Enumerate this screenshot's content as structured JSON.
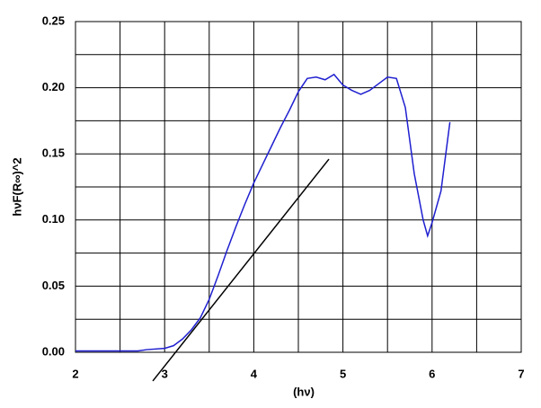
{
  "chart_data": {
    "type": "line",
    "xlabel": "(hν)",
    "ylabel": "hνF(R∞)^2",
    "xlim": [
      2,
      7
    ],
    "xticks": [
      2,
      3,
      4,
      5,
      6,
      7
    ],
    "ylim": [
      0,
      0.25
    ],
    "yticks": [
      {
        "value": 0,
        "label": "0.00"
      },
      {
        "value": 0.05,
        "label": "0.05"
      },
      {
        "value": 0.1,
        "label": "0.10"
      },
      {
        "value": 0.15,
        "label": "0.15"
      },
      {
        "value": 0.2,
        "label": "0.20"
      },
      {
        "value": 0.25,
        "label": "0.25"
      }
    ],
    "grid": true,
    "minor_grid": true,
    "series": [
      {
        "color": "#1f1fd0",
        "x": [
          2.0,
          2.5,
          2.7,
          2.8,
          3.0,
          3.1,
          3.2,
          3.3,
          3.4,
          3.5,
          3.6,
          3.7,
          3.8,
          3.9,
          4.0,
          4.1,
          4.2,
          4.3,
          4.4,
          4.5,
          4.6,
          4.7,
          4.8,
          4.9,
          5.0,
          5.1,
          5.2,
          5.3,
          5.4,
          5.5,
          5.6,
          5.7,
          5.8,
          5.9,
          5.95,
          6.0,
          6.1,
          6.2
        ],
        "values": [
          0.001,
          0.001,
          0.001,
          0.002,
          0.003,
          0.005,
          0.01,
          0.017,
          0.026,
          0.04,
          0.058,
          0.077,
          0.095,
          0.112,
          0.128,
          0.142,
          0.156,
          0.17,
          0.183,
          0.197,
          0.207,
          0.208,
          0.206,
          0.21,
          0.202,
          0.198,
          0.195,
          0.198,
          0.203,
          0.208,
          0.207,
          0.185,
          0.135,
          0.1,
          0.088,
          0.098,
          0.122,
          0.174
        ]
      },
      {
        "color": "#000000",
        "x": [
          2.867,
          4.843
        ],
        "values": [
          -0.0217,
          0.146
        ]
      }
    ]
  }
}
